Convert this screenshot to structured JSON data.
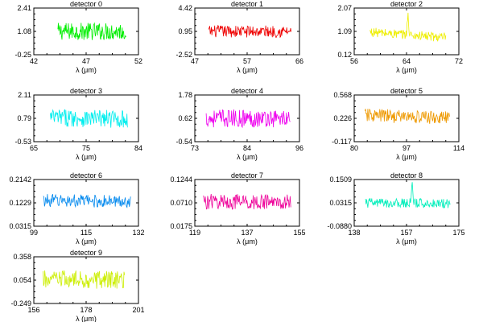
{
  "chart_data": [
    {
      "type": "line",
      "title": "detector 0",
      "xlabel": "λ (μm)",
      "xlim": [
        42,
        52
      ],
      "ylim": [
        -0.25,
        2.41
      ],
      "xticks": [
        "42",
        "47",
        "52"
      ],
      "yticks": [
        "2.41",
        "1.08",
        "-0.25"
      ],
      "color": "#00ee00",
      "series": [
        {
          "x_range": [
            44.3,
            50.8
          ],
          "baseline": 1.08,
          "noise": 0.5,
          "slope": 0
        }
      ]
    },
    {
      "type": "line",
      "title": "detector 1",
      "xlabel": "λ (μm)",
      "xlim": [
        47,
        66
      ],
      "ylim": [
        -2.52,
        4.42
      ],
      "xticks": [
        "47",
        "57",
        "66"
      ],
      "yticks": [
        "4.42",
        "0.95",
        "-2.52"
      ],
      "color": "#ee0000",
      "series": [
        {
          "x_range": [
            49.5,
            64.5
          ],
          "baseline": 0.95,
          "noise": 0.9,
          "slope": 0
        }
      ]
    },
    {
      "type": "line",
      "title": "detector 2",
      "xlabel": "λ (μm)",
      "xlim": [
        56,
        72
      ],
      "ylim": [
        0.12,
        2.07
      ],
      "xticks": [
        "56",
        "64",
        "72"
      ],
      "yticks": [
        "2.07",
        "1.09",
        "0.12"
      ],
      "color": "#eeee00",
      "series": [
        {
          "x_range": [
            58.4,
            70.0
          ],
          "baseline": 0.95,
          "noise": 0.2,
          "slope": -0.3,
          "peak": {
            "x": 64.2,
            "height": 1.9
          }
        }
      ]
    },
    {
      "type": "line",
      "title": "detector 3",
      "xlabel": "λ (μm)",
      "xlim": [
        65,
        84
      ],
      "ylim": [
        -0.53,
        2.11
      ],
      "xticks": [
        "65",
        "75",
        "84"
      ],
      "yticks": [
        "2.11",
        "0.79",
        "-0.53"
      ],
      "color": "#00eeee",
      "series": [
        {
          "x_range": [
            68.0,
            82.0
          ],
          "baseline": 0.79,
          "noise": 0.5,
          "slope": -0.1
        }
      ]
    },
    {
      "type": "line",
      "title": "detector 4",
      "xlabel": "λ (μm)",
      "xlim": [
        73,
        96
      ],
      "ylim": [
        -0.54,
        1.78
      ],
      "xticks": [
        "73",
        "84",
        "96"
      ],
      "yticks": [
        "1.78",
        "0.62",
        "-0.54"
      ],
      "color": "#ee00ee",
      "series": [
        {
          "x_range": [
            75.5,
            94.0
          ],
          "baseline": 0.62,
          "noise": 0.45,
          "slope": 0
        }
      ]
    },
    {
      "type": "line",
      "title": "detector 5",
      "xlabel": "λ (μm)",
      "xlim": [
        80,
        114
      ],
      "ylim": [
        -0.117,
        0.568
      ],
      "xticks": [
        "80",
        "97",
        "114"
      ],
      "yticks": [
        "0.568",
        "0.226",
        "-0.117"
      ],
      "color": "#ee9900",
      "series": [
        {
          "x_range": [
            83.5,
            111.0
          ],
          "baseline": 0.25,
          "noise": 0.1,
          "slope": -0.15
        }
      ]
    },
    {
      "type": "line",
      "title": "detector 6",
      "xlabel": "λ (μm)",
      "xlim": [
        99,
        132
      ],
      "ylim": [
        0.0315,
        0.2142
      ],
      "xticks": [
        "99",
        "115",
        "132"
      ],
      "yticks": [
        "0.2142",
        "0.1229",
        "0.0315"
      ],
      "color": "#0088ee",
      "series": [
        {
          "x_range": [
            102.0,
            129.5
          ],
          "baseline": 0.13,
          "noise": 0.025,
          "slope": -0.07
        }
      ]
    },
    {
      "type": "line",
      "title": "detector 7",
      "xlabel": "λ (μm)",
      "xlim": [
        119,
        155
      ],
      "ylim": [
        0.0175,
        0.1244
      ],
      "xticks": [
        "119",
        "137",
        "155"
      ],
      "yticks": [
        "0.1244",
        "0.0710",
        "0.0175"
      ],
      "color": "#ee0099",
      "series": [
        {
          "x_range": [
            122.0,
            152.0
          ],
          "baseline": 0.073,
          "noise": 0.018,
          "slope": -0.04
        }
      ]
    },
    {
      "type": "line",
      "title": "detector 8",
      "xlabel": "λ (μm)",
      "xlim": [
        138,
        175
      ],
      "ylim": [
        -0.088,
        0.1509
      ],
      "xticks": [
        "138",
        "157",
        "175"
      ],
      "yticks": [
        "0.1509",
        "0.0315",
        "-0.0880"
      ],
      "color": "#00eebb",
      "series": [
        {
          "x_range": [
            142.0,
            172.0
          ],
          "baseline": 0.03,
          "noise": 0.025,
          "slope": -0.02,
          "peak": {
            "x": 158.5,
            "height": 0.13
          }
        }
      ]
    },
    {
      "type": "line",
      "title": "detector 9",
      "xlabel": "λ (μm)",
      "xlim": [
        156,
        201
      ],
      "ylim": [
        -0.249,
        0.358
      ],
      "xticks": [
        "156",
        "178",
        "201"
      ],
      "yticks": [
        "0.358",
        "0.054",
        "-0.249"
      ],
      "color": "#ccee00",
      "series": [
        {
          "x_range": [
            160.0,
            195.0
          ],
          "baseline": 0.06,
          "noise": 0.12,
          "slope": 0
        }
      ]
    }
  ]
}
